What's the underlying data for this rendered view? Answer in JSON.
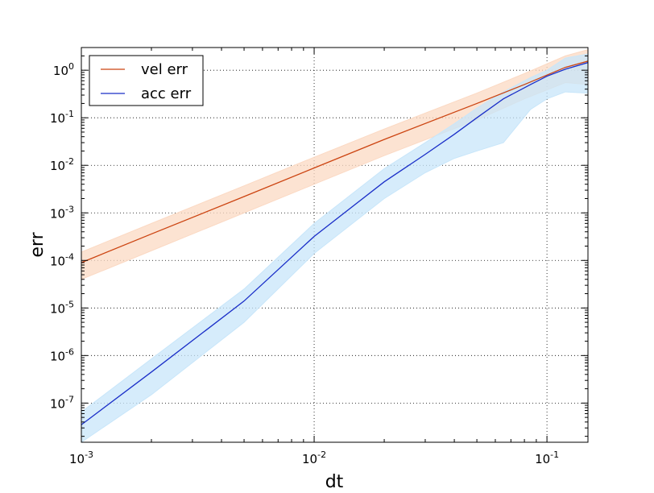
{
  "chart_data": {
    "type": "line",
    "title": "",
    "xlabel": "dt",
    "ylabel": "err",
    "xscale": "log",
    "yscale": "log",
    "xlim": [
      0.001,
      0.15
    ],
    "ylim": [
      1.5e-08,
      3.0
    ],
    "grid": true,
    "legend_position": "upper-left",
    "x_ticks": [
      {
        "base": "10",
        "exp": "-3",
        "value": 0.001
      },
      {
        "base": "10",
        "exp": "-2",
        "value": 0.01
      },
      {
        "base": "10",
        "exp": "-1",
        "value": 0.1
      }
    ],
    "y_ticks": [
      {
        "base": "10",
        "exp": "-7",
        "value": 1e-07
      },
      {
        "base": "10",
        "exp": "-6",
        "value": 1e-06
      },
      {
        "base": "10",
        "exp": "-5",
        "value": 1e-05
      },
      {
        "base": "10",
        "exp": "-4",
        "value": 0.0001
      },
      {
        "base": "10",
        "exp": "-3",
        "value": 0.001
      },
      {
        "base": "10",
        "exp": "-2",
        "value": 0.01
      },
      {
        "base": "10",
        "exp": "-1",
        "value": 0.1
      },
      {
        "base": "10",
        "exp": "0",
        "value": 1
      }
    ],
    "series": [
      {
        "name": "vel err",
        "line_color": "#cc4411",
        "band_color": "#fbd9c3",
        "x": [
          0.001,
          0.002,
          0.005,
          0.01,
          0.02,
          0.05,
          0.08,
          0.12,
          0.15
        ],
        "y": [
          9e-05,
          0.00036,
          0.0022,
          0.0088,
          0.035,
          0.2,
          0.5,
          1.15,
          1.55
        ],
        "lower": [
          4e-05,
          0.00016,
          0.001,
          0.004,
          0.016,
          0.09,
          0.25,
          0.55,
          0.5
        ],
        "upper": [
          0.00015,
          0.0006,
          0.0037,
          0.0148,
          0.058,
          0.33,
          0.85,
          2.0,
          2.7
        ]
      },
      {
        "name": "acc err",
        "line_color": "#1a2ec8",
        "band_color": "#c8e6fa",
        "x": [
          0.001,
          0.002,
          0.005,
          0.01,
          0.02,
          0.03,
          0.04,
          0.05,
          0.065,
          0.085,
          0.1,
          0.12,
          0.15
        ],
        "y": [
          3.5e-08,
          4.5e-07,
          1.4e-05,
          0.00032,
          0.0045,
          0.017,
          0.045,
          0.1,
          0.25,
          0.5,
          0.75,
          1.05,
          1.45
        ],
        "lower": [
          1.5e-08,
          1.5e-07,
          5e-06,
          0.00014,
          0.002,
          0.007,
          0.014,
          0.02,
          0.03,
          0.15,
          0.25,
          0.35,
          0.33
        ],
        "upper": [
          6.5e-08,
          8.5e-07,
          2.5e-05,
          0.0006,
          0.0085,
          0.03,
          0.075,
          0.16,
          0.35,
          0.7,
          1.0,
          1.8,
          2.2
        ]
      }
    ]
  }
}
